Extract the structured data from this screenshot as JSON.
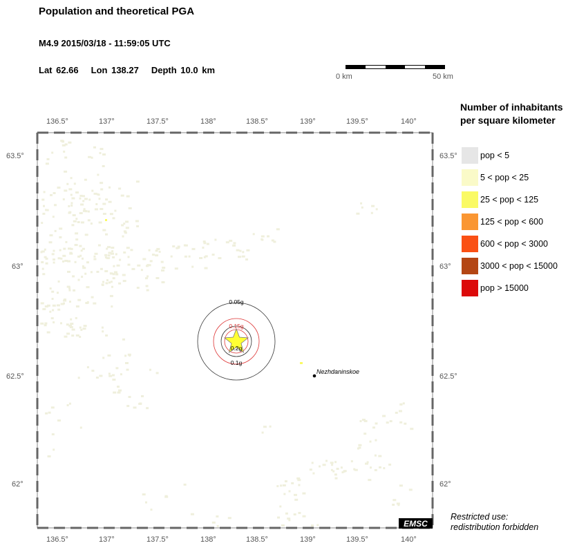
{
  "header": {
    "title": "Population and theoretical PGA",
    "event": "M4.9  2015/03/18 - 11:59:05 UTC",
    "lat": "Lat 62.66",
    "lon": "Lon 138.27",
    "depth": "Depth  10.0 km"
  },
  "scale": {
    "left_label": "0 km",
    "right_label": "50 km"
  },
  "map": {
    "lon_ticks": [
      "136.5°",
      "137°",
      "137.5°",
      "138°",
      "138.5°",
      "139°",
      "139.5°",
      "140°"
    ],
    "lat_ticks": [
      "63.5°",
      "63°",
      "62.5°",
      "62°"
    ],
    "pga_labels": [
      "0.05g",
      "0.15g",
      "0.2g",
      "0.1g"
    ],
    "town": "Nezhdaninskoe",
    "logo": "EMSC",
    "colors": {
      "low_pop": "#efefdc",
      "epicenter": "#ffff33",
      "ring_inner": "#dd3333",
      "ring_outer": "#333333"
    }
  },
  "legend": {
    "title_line1": "Number of inhabitants",
    "title_line2": "per square kilometer",
    "items": [
      {
        "label": "pop < 5",
        "color": "#e6e6e6"
      },
      {
        "label": "5 < pop < 25",
        "color": "#fafac8"
      },
      {
        "label": "25 < pop < 125",
        "color": "#fafa64"
      },
      {
        "label": "125 < pop < 600",
        "color": "#fa9632"
      },
      {
        "label": "600 < pop < 3000",
        "color": "#fa5014"
      },
      {
        "label": "3000 < pop < 15000",
        "color": "#b44614"
      },
      {
        "label": "pop > 15000",
        "color": "#dc0a0a"
      }
    ]
  },
  "notice": {
    "line1": "Restricted use:",
    "line2": "redistribution forbidden"
  }
}
